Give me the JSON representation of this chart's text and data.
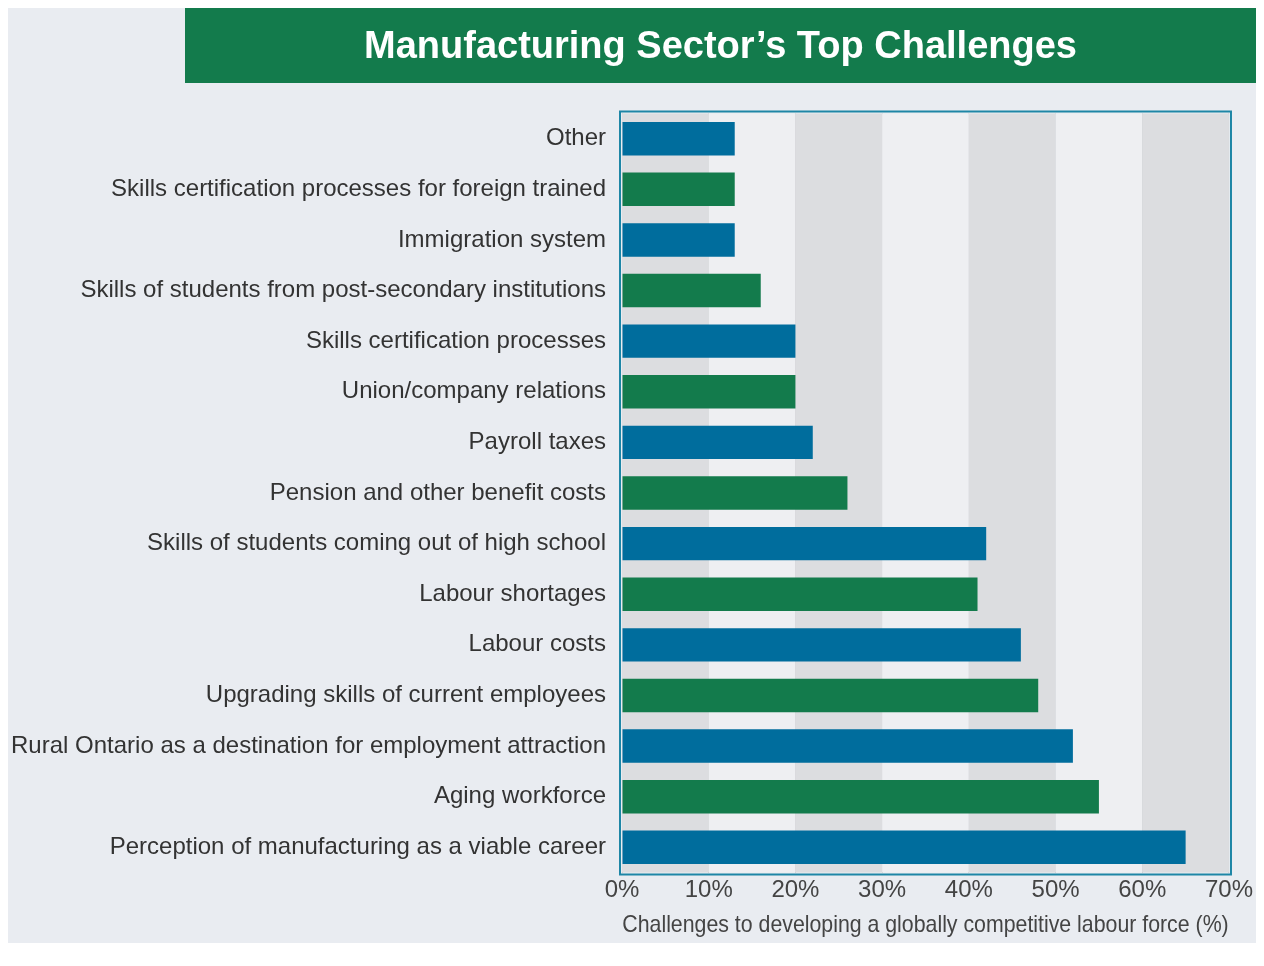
{
  "chart_data": {
    "type": "bar",
    "orientation": "horizontal",
    "title": "Manufacturing Sector’s Top Challenges",
    "xlabel": "Challenges to developing a globally competitive labour force (%)",
    "categories": [
      "Other",
      "Skills certification processes for foreign trained",
      "Immigration system",
      "Skills of students from post-secondary institutions",
      "Skills certification processes",
      "Union/company relations",
      "Payroll taxes",
      "Pension and other benefit costs",
      "Skills of students coming out of high school",
      "Labour shortages",
      "Labour costs",
      "Upgrading skills of current employees",
      "Rural Ontario as a destination for employment attraction",
      "Aging workforce",
      "Perception of manufacturing as a viable career"
    ],
    "values": [
      13,
      13,
      13,
      16,
      20,
      20,
      22,
      26,
      42,
      41,
      46,
      48,
      52,
      55,
      65
    ],
    "colors": [
      "#006d9d",
      "#137b4c",
      "#006d9d",
      "#137b4c",
      "#006d9d",
      "#137b4c",
      "#006d9d",
      "#137b4c",
      "#006d9d",
      "#137b4c",
      "#006d9d",
      "#137b4c",
      "#006d9d",
      "#137b4c",
      "#006d9d"
    ],
    "xlim": [
      0,
      70
    ],
    "xticks": [
      {
        "value": 0,
        "label": "0%"
      },
      {
        "value": 10,
        "label": "10%"
      },
      {
        "value": 20,
        "label": "20%"
      },
      {
        "value": 30,
        "label": "30%"
      },
      {
        "value": 40,
        "label": "40%"
      },
      {
        "value": 50,
        "label": "50%"
      },
      {
        "value": 60,
        "label": "60%"
      },
      {
        "value": 70,
        "label": "70%"
      }
    ],
    "grid": "x",
    "legend": false
  }
}
